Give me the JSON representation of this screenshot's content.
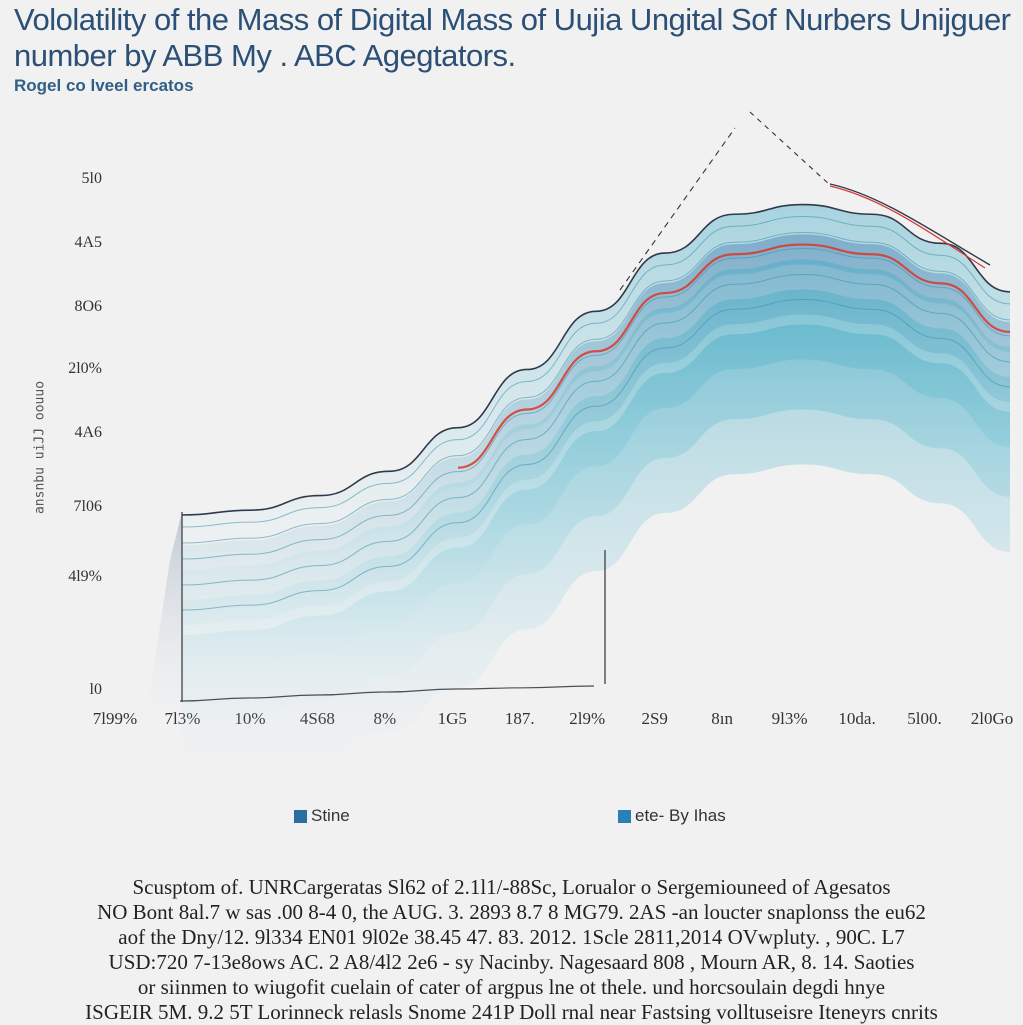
{
  "chart_data": {
    "type": "area",
    "title": "Vololatility of the Mass of Digital Mass of Uujia Ungital Sof Nurbers Unijguer number by ABB My . ABC Agegtators.",
    "subtitle": "Rogel co lveel ercatos",
    "ylabel": "ansnbu uiJJ oouuo",
    "ytick_labels": [
      "5l0",
      "4A5",
      "8O6",
      "2l0%",
      "4A6",
      "7l06",
      "4l9%",
      "l0"
    ],
    "xtick_labels": [
      "7l99%",
      "7l3%",
      "10%",
      "4S68",
      "8%",
      "1G5",
      "187.",
      "2l9%",
      "2S9",
      "8ın",
      "9l3%",
      "10da.",
      "5l00.",
      "2l0Go"
    ],
    "x": [
      0,
      1,
      2,
      3,
      4,
      5,
      6,
      7,
      8,
      9,
      10,
      11,
      12,
      13
    ],
    "series": [
      {
        "name": "Stine",
        "values": [
          null,
          0.8,
          0.9,
          1.2,
          1.7,
          2.6,
          3.8,
          5.0,
          6.2,
          7.0,
          7.2,
          7.0,
          6.4,
          5.4
        ]
      },
      {
        "name": "ete- By Ihas",
        "values": [
          null,
          0.0,
          0.05,
          0.1,
          0.15,
          0.2,
          0.22,
          0.25,
          null,
          null,
          null,
          null,
          null,
          null
        ]
      }
    ],
    "ylim": [
      0,
      7.5
    ],
    "grid": false,
    "legend_position": "bottom",
    "colors": {
      "band": "#3ea8c2",
      "deep": "#1f5c9e",
      "accent": "#d9372a",
      "line": "#2f3b4a",
      "legend1": "#2a6fa0",
      "legend2": "#2a7fb6"
    }
  },
  "caption": {
    "lines": [
      "Scusptom of. UNRCargeratas Sl62 of 2.1l1/-88Sc, Lorualor o Sergemiouneed of Agesatos",
      "NO Bont 8al.7 w sas .00 8-4 0, the AUG. 3. 2893 8.7 8 MG79. 2AS -an loucter snaplonss the eu62",
      "aof the Dny/12. 9l334 EN01 9l02e 38.45 47. 83. 2012. 1Scle 2811,2014 OVwpluty. , 90C. L7",
      "USD:720 7-13e8ows AC. 2 A8/4l2 2e6 - sy Nacinby. Nagesaard 808 , Mourn AR, 8. 14. Saoties",
      "or siinmen to wiugofit cuelain of cater of argpus lne ot thele. und horcsoulain degdi hnye",
      "ISGEIR 5M. 9.2 5T Lorinneck relasls Snome 241P Doll rnal near Fastsing volltuseisre Iteneyrs cnrits"
    ]
  }
}
